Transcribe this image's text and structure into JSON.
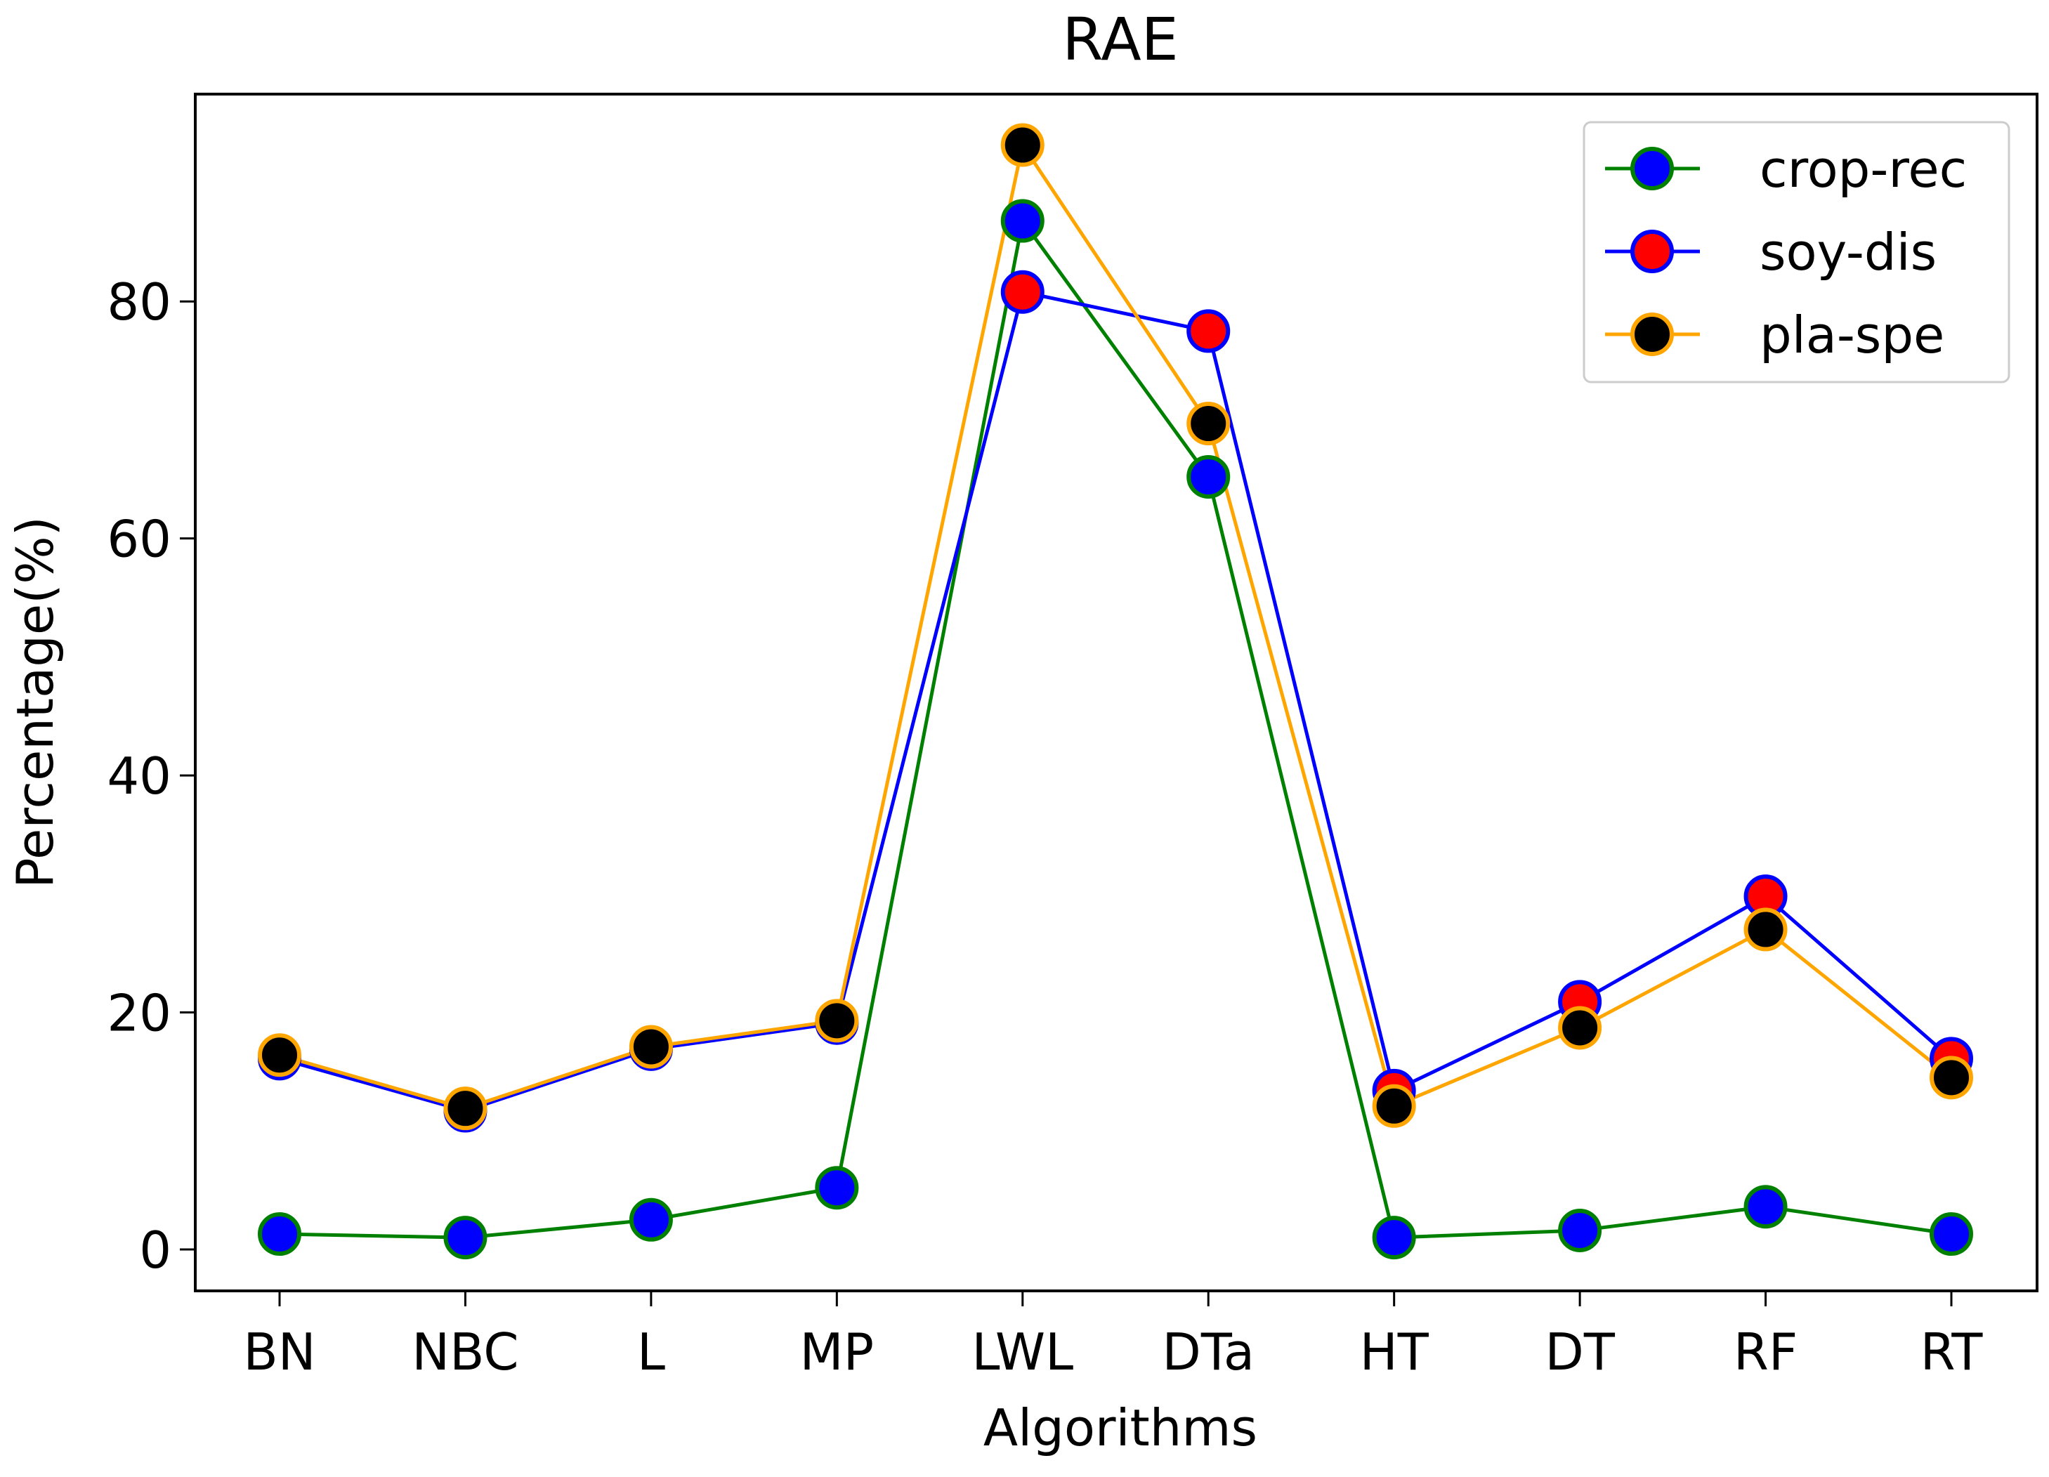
{
  "chart_data": {
    "type": "line",
    "title": "RAE",
    "xlabel": "Algorithms",
    "ylabel": "Percentage(%)",
    "categories": [
      "BN",
      "NBC",
      "L",
      "MP",
      "LWL",
      "DTa",
      "HT",
      "DT",
      "RF",
      "RT"
    ],
    "ylim": [
      -3.5,
      97.5
    ],
    "yticks": [
      0,
      20,
      40,
      60,
      80
    ],
    "grid": false,
    "legend_position": "top-right",
    "series": [
      {
        "name": "crop-rec",
        "line_color": "#008000",
        "marker_face": "#0000ff",
        "marker_edge": "#008000",
        "values": [
          1.3,
          1.0,
          2.5,
          5.2,
          86.8,
          65.2,
          1.0,
          1.6,
          3.6,
          1.3
        ]
      },
      {
        "name": "soy-dis",
        "line_color": "#0000ff",
        "marker_face": "#ff0000",
        "marker_edge": "#0000ff",
        "values": [
          16.1,
          11.7,
          16.9,
          19.1,
          80.8,
          77.5,
          13.4,
          20.9,
          29.8,
          16.1
        ]
      },
      {
        "name": "pla-spe",
        "line_color": "#ffa500",
        "marker_face": "#000000",
        "marker_edge": "#ffa500",
        "values": [
          16.4,
          11.9,
          17.1,
          19.3,
          93.2,
          69.7,
          12.1,
          18.7,
          27.0,
          14.5
        ]
      }
    ]
  }
}
